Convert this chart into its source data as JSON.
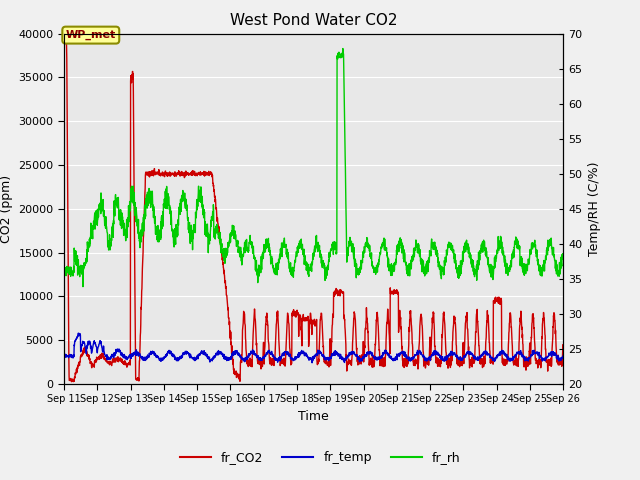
{
  "title": "West Pond Water CO2",
  "xlabel": "Time",
  "ylabel_left": "CO2 (ppm)",
  "ylabel_right": "Temp/RH (C/%)",
  "annotation_text": "WP_met",
  "annotation_box_color": "#FFFF99",
  "annotation_border_color": "#8B8B00",
  "xlim_days": [
    11,
    26
  ],
  "ylim_left": [
    0,
    40000
  ],
  "ylim_right": [
    20,
    70
  ],
  "xtick_labels": [
    "Sep 11",
    "Sep 12",
    "Sep 13",
    "Sep 14",
    "Sep 15",
    "Sep 16",
    "Sep 17",
    "Sep 18",
    "Sep 19",
    "Sep 20",
    "Sep 21",
    "Sep 22",
    "Sep 23",
    "Sep 24",
    "Sep 25",
    "Sep 26"
  ],
  "legend_entries": [
    "fr_CO2",
    "fr_temp",
    "fr_rh"
  ],
  "legend_colors": [
    "#cc0000",
    "#0000cc",
    "#00cc00"
  ],
  "fig_bg_color": "#f0f0f0",
  "plot_bg_color": "#e8e8e8",
  "grid_color": "#ffffff",
  "line_width": 1.0,
  "figsize": [
    6.4,
    4.8
  ],
  "dpi": 100
}
